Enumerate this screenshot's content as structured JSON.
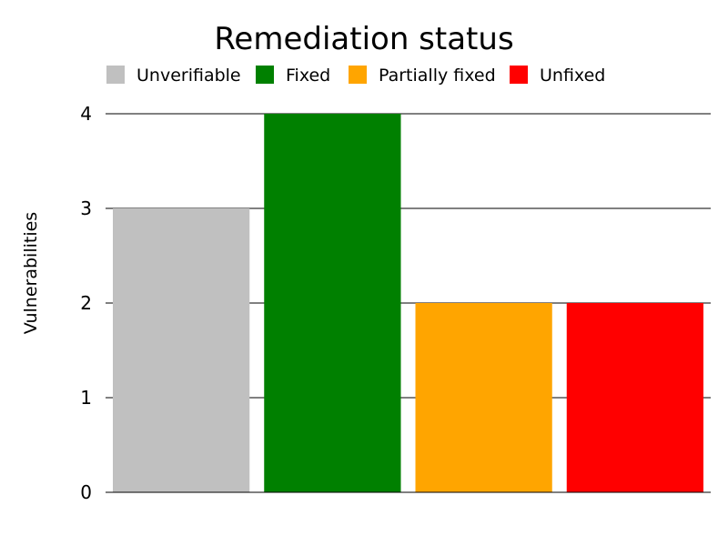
{
  "chart_data": {
    "type": "bar",
    "title": "Remediation status",
    "ylabel": "Vulnerabilities",
    "xlabel": "",
    "categories": [
      "Unverifiable",
      "Fixed",
      "Partially fixed",
      "Unfixed"
    ],
    "values": [
      3,
      4,
      2,
      2
    ],
    "colors": [
      "#c0c0c0",
      "#008000",
      "#ffa500",
      "#ff0000"
    ],
    "ylim": [
      0,
      4
    ],
    "yticks": [
      "0",
      "1",
      "2",
      "3",
      "4"
    ],
    "grid": true,
    "legend": {
      "position": "top",
      "entries": [
        "Unverifiable",
        "Fixed",
        "Partially fixed",
        "Unfixed"
      ]
    }
  }
}
